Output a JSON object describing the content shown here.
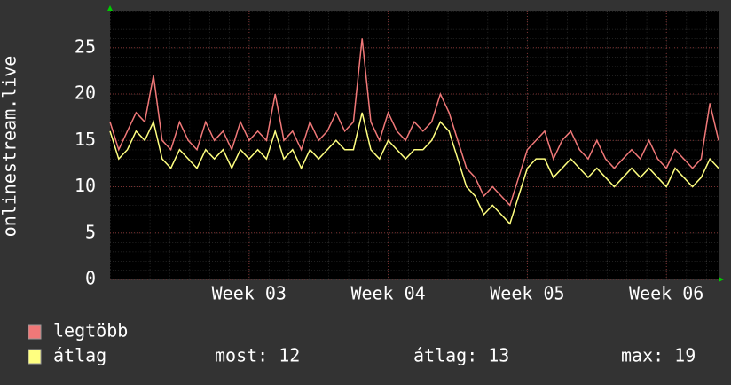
{
  "chart_data": {
    "type": "line",
    "y_label": "onlinestream.live",
    "x": [
      2.0,
      2.0625,
      2.125,
      2.1875,
      2.25,
      2.3125,
      2.375,
      2.4375,
      2.5,
      2.5625,
      2.625,
      2.6875,
      2.75,
      2.8125,
      2.875,
      2.9375,
      3.0,
      3.0625,
      3.125,
      3.1875,
      3.25,
      3.3125,
      3.375,
      3.4375,
      3.5,
      3.5625,
      3.625,
      3.6875,
      3.75,
      3.8125,
      3.875,
      3.9375,
      4.0,
      4.0625,
      4.125,
      4.1875,
      4.25,
      4.3125,
      4.375,
      4.4375,
      4.5,
      4.5625,
      4.625,
      4.6875,
      4.75,
      4.8125,
      4.875,
      4.9375,
      5.0,
      5.0625,
      5.125,
      5.1875,
      5.25,
      5.3125,
      5.375,
      5.4375,
      5.5,
      5.5625,
      5.625,
      5.6875,
      5.75,
      5.8125,
      5.875,
      5.9375,
      6.0,
      6.0625,
      6.125,
      6.1875,
      6.25,
      6.3125,
      6.375
    ],
    "series": [
      {
        "name": "legtöbb",
        "color": "#f07878",
        "values": [
          17,
          14,
          16,
          18,
          17,
          22,
          15,
          14,
          17,
          15,
          14,
          17,
          15,
          16,
          14,
          17,
          15,
          16,
          15,
          20,
          15,
          16,
          14,
          17,
          15,
          16,
          18,
          16,
          17,
          26,
          17,
          15,
          18,
          16,
          15,
          17,
          16,
          17,
          20,
          18,
          15,
          12,
          11,
          9,
          10,
          9,
          8,
          11,
          14,
          15,
          16,
          13,
          15,
          16,
          14,
          13,
          15,
          13,
          12,
          13,
          14,
          13,
          15,
          13,
          12,
          14,
          13,
          12,
          13,
          19,
          15
        ]
      },
      {
        "name": "átlag",
        "color": "#ffff80",
        "values": [
          16,
          13,
          14,
          16,
          15,
          17,
          13,
          12,
          14,
          13,
          12,
          14,
          13,
          14,
          12,
          14,
          13,
          14,
          13,
          16,
          13,
          14,
          12,
          14,
          13,
          14,
          15,
          14,
          14,
          18,
          14,
          13,
          15,
          14,
          13,
          14,
          14,
          15,
          17,
          16,
          13,
          10,
          9,
          7,
          8,
          7,
          6,
          9,
          12,
          13,
          13,
          11,
          12,
          13,
          12,
          11,
          12,
          11,
          10,
          11,
          12,
          11,
          12,
          11,
          10,
          12,
          11,
          10,
          11,
          13,
          12
        ]
      }
    ],
    "xlim": [
      2.0,
      6.375
    ],
    "xticks": [
      {
        "value": 3,
        "label": "Week 03"
      },
      {
        "value": 4,
        "label": "Week 04"
      },
      {
        "value": 5,
        "label": "Week 05"
      },
      {
        "value": 6,
        "label": "Week 06"
      }
    ],
    "ylim": [
      0,
      29
    ],
    "yticks": [
      0,
      5,
      10,
      15,
      20,
      25
    ],
    "grid": true,
    "stats": [
      {
        "label": "most:",
        "value": 12
      },
      {
        "label": "átlag:",
        "value": 13
      },
      {
        "label": "max:",
        "value": 19
      }
    ]
  }
}
